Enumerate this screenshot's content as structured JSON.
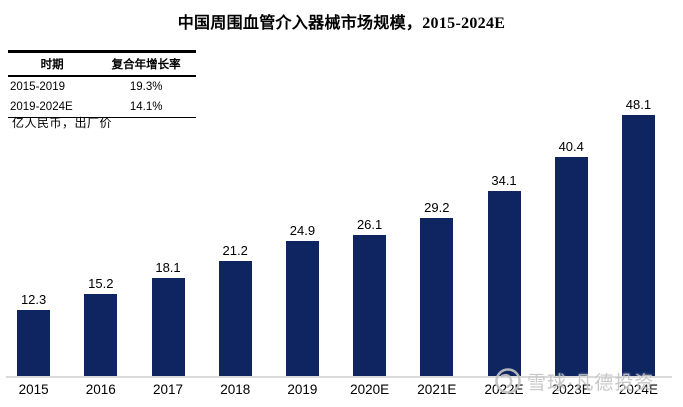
{
  "title": {
    "cn": "中国周围血管介入器械市场规模，",
    "en": "2015-2024E"
  },
  "cagr_table": {
    "headers": [
      "时期",
      "复合年增长率"
    ],
    "rows": [
      {
        "period": "2015-2019",
        "cagr": "19.3%"
      },
      {
        "period": "2019-2024E",
        "cagr": "14.1%"
      }
    ]
  },
  "unit_note": "亿人民币，出厂价",
  "chart_data": {
    "type": "bar",
    "title": "中国周围血管介入器械市场规模，2015-2024E",
    "categories": [
      "2015",
      "2016",
      "2017",
      "2018",
      "2019",
      "2020E",
      "2021E",
      "2022E",
      "2023E",
      "2024E"
    ],
    "values": [
      12.3,
      15.2,
      18.1,
      21.2,
      24.9,
      26.1,
      29.2,
      34.1,
      40.4,
      48.1
    ],
    "xlabel": "",
    "ylabel": "亿人民币，出厂价",
    "ylim": [
      0,
      50
    ],
    "grid": false,
    "legend": "none",
    "data_labels": true,
    "bar_color": "#0f2562",
    "axis_color": "#d9d9d9",
    "label_color": "#000000"
  },
  "watermark": {
    "icon": "xueqiu-snowball-icon",
    "text": "雪球·凡德投资",
    "color": "#c3c3c3"
  }
}
